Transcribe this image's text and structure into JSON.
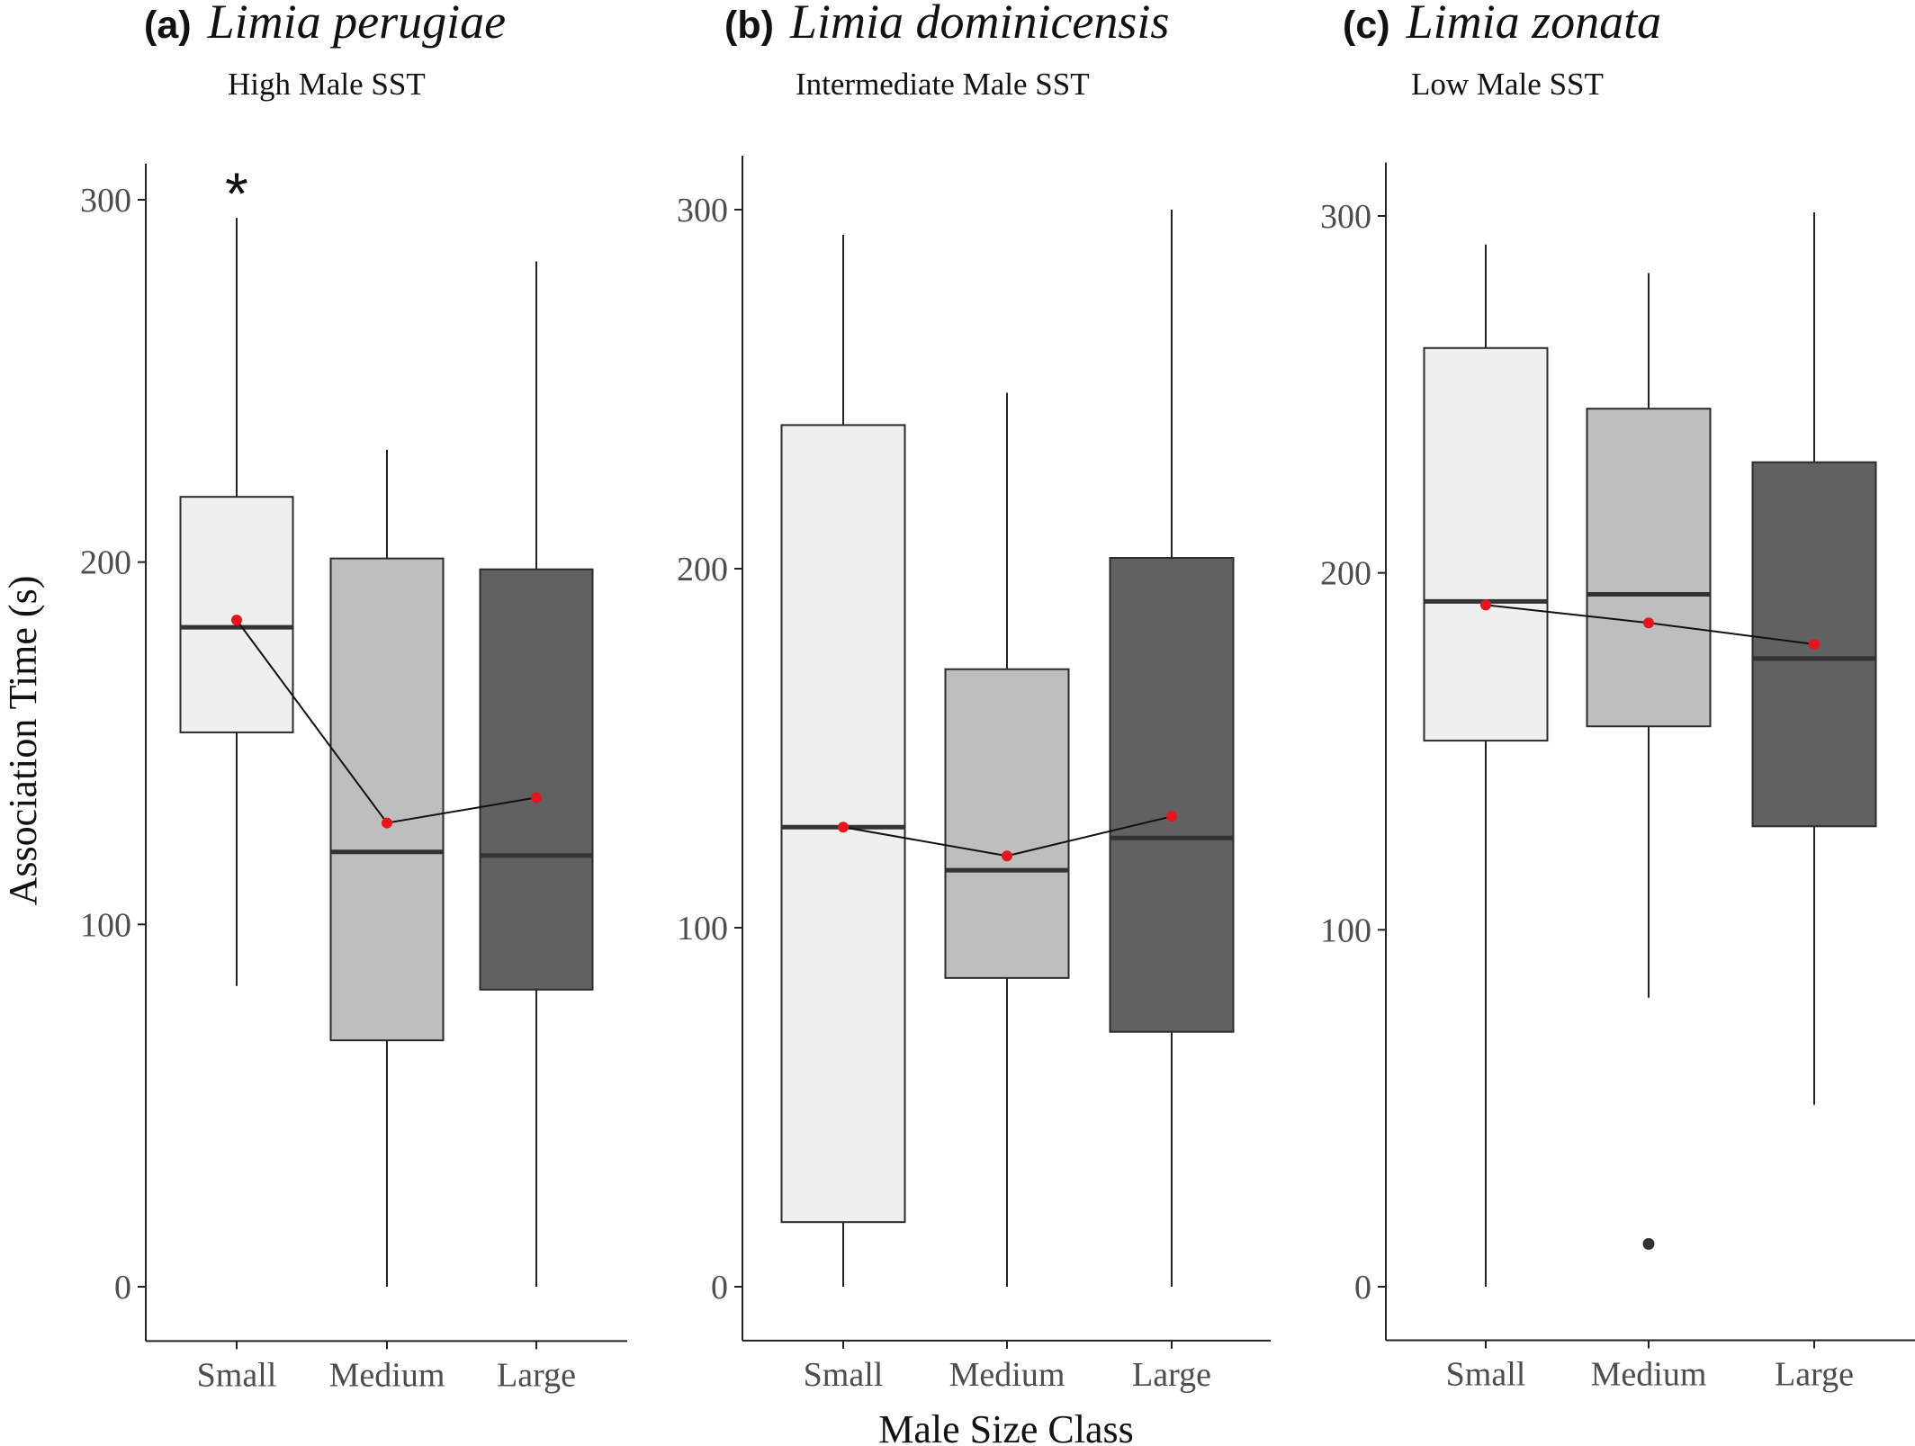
{
  "xlabel": "Male Size Class",
  "ylabel": "Association Time (s)",
  "colors": {
    "small": "#efefef",
    "medium": "#bebebe",
    "large": "#616161",
    "mean_point": "#e8141c",
    "mean_line": "#111111",
    "box_stroke": "#2b2b2b",
    "median": "#333333",
    "outlier": "#333333"
  },
  "chart_data": [
    {
      "type": "box",
      "label": "(a)",
      "title": "Limia perugiae",
      "subtitle": "High Male SST",
      "categories": [
        "Small",
        "Medium",
        "Large"
      ],
      "yticks": [
        0,
        100,
        200,
        300
      ],
      "ylim": [
        -15,
        310
      ],
      "annotation": {
        "text": "*",
        "category": "Small"
      },
      "boxes": [
        {
          "whisker_low": 83,
          "q1": 153,
          "median": 182,
          "q3": 218,
          "whisker_high": 295,
          "mean": 184,
          "outliers": []
        },
        {
          "whisker_low": 0,
          "q1": 68,
          "median": 120,
          "q3": 201,
          "whisker_high": 231,
          "mean": 128,
          "outliers": []
        },
        {
          "whisker_low": 0,
          "q1": 82,
          "median": 119,
          "q3": 198,
          "whisker_high": 283,
          "mean": 135,
          "outliers": []
        }
      ]
    },
    {
      "type": "box",
      "label": "(b)",
      "title": "Limia dominicensis",
      "subtitle": "Intermediate Male SST",
      "categories": [
        "Small",
        "Medium",
        "Large"
      ],
      "yticks": [
        0,
        100,
        200,
        300
      ],
      "ylim": [
        -15,
        315
      ],
      "annotation": null,
      "boxes": [
        {
          "whisker_low": 0,
          "q1": 18,
          "median": 128,
          "q3": 240,
          "whisker_high": 293,
          "mean": 128,
          "outliers": []
        },
        {
          "whisker_low": 0,
          "q1": 86,
          "median": 116,
          "q3": 172,
          "whisker_high": 249,
          "mean": 120,
          "outliers": []
        },
        {
          "whisker_low": 0,
          "q1": 71,
          "median": 125,
          "q3": 203,
          "whisker_high": 300,
          "mean": 131,
          "outliers": []
        }
      ]
    },
    {
      "type": "box",
      "label": "(c)",
      "title": "Limia zonata",
      "subtitle": "Low Male SST",
      "categories": [
        "Small",
        "Medium",
        "Large"
      ],
      "yticks": [
        0,
        100,
        200,
        300
      ],
      "ylim": [
        -15,
        315
      ],
      "annotation": null,
      "boxes": [
        {
          "whisker_low": 0,
          "q1": 153,
          "median": 192,
          "q3": 263,
          "whisker_high": 292,
          "mean": 191,
          "outliers": []
        },
        {
          "whisker_low": 81,
          "q1": 157,
          "median": 194,
          "q3": 246,
          "whisker_high": 284,
          "mean": 186,
          "outliers": [
            12
          ]
        },
        {
          "whisker_low": 51,
          "q1": 129,
          "median": 176,
          "q3": 231,
          "whisker_high": 301,
          "mean": 180,
          "outliers": []
        }
      ]
    }
  ]
}
